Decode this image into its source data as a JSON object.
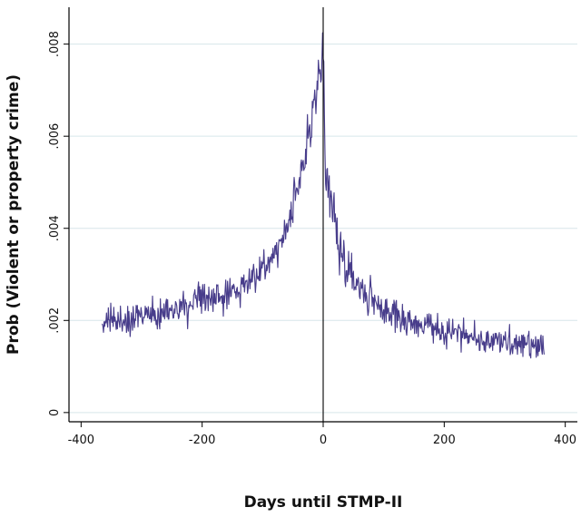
{
  "chart_data": {
    "type": "line",
    "title": "",
    "xlabel": "Days until STMP-II",
    "ylabel": "Prob (Violent or property crime)",
    "xlim": [
      -420,
      420
    ],
    "ylim": [
      -0.0002,
      0.0088
    ],
    "xticks": [
      -400,
      -200,
      0,
      200,
      400
    ],
    "xtick_labels": [
      "-400",
      "-200",
      "0",
      "200",
      "400"
    ],
    "yticks": [
      0,
      0.002,
      0.004,
      0.006,
      0.008
    ],
    "ytick_labels": [
      "0",
      ".002",
      ".004",
      ".006",
      ".008"
    ],
    "grid": true,
    "legend": "none",
    "vline_x": 0,
    "colors": {
      "series": "#483d8b",
      "grid": "#d7e6ea",
      "axis": "#000000",
      "vline": "#000000"
    },
    "series": [
      {
        "x_range": [
          -365,
          365
        ],
        "anchors": [
          [
            -365,
            0.0019
          ],
          [
            -340,
            0.002
          ],
          [
            -300,
            0.0021
          ],
          [
            -260,
            0.0022
          ],
          [
            -220,
            0.0023
          ],
          [
            -180,
            0.0025
          ],
          [
            -150,
            0.0026
          ],
          [
            -120,
            0.0029
          ],
          [
            -100,
            0.0031
          ],
          [
            -80,
            0.0035
          ],
          [
            -60,
            0.004
          ],
          [
            -40,
            0.005
          ],
          [
            -20,
            0.0063
          ],
          [
            -8,
            0.0072
          ],
          [
            -1,
            0.0078
          ],
          [
            0,
            0.0078
          ],
          [
            3,
            0.0055
          ],
          [
            10,
            0.0048
          ],
          [
            25,
            0.0036
          ],
          [
            50,
            0.0029
          ],
          [
            80,
            0.0024
          ],
          [
            120,
            0.0021
          ],
          [
            160,
            0.0019
          ],
          [
            200,
            0.0018
          ],
          [
            260,
            0.0016
          ],
          [
            320,
            0.0015
          ],
          [
            365,
            0.0014
          ]
        ],
        "noise_amplitude": 0.00034
      }
    ]
  }
}
